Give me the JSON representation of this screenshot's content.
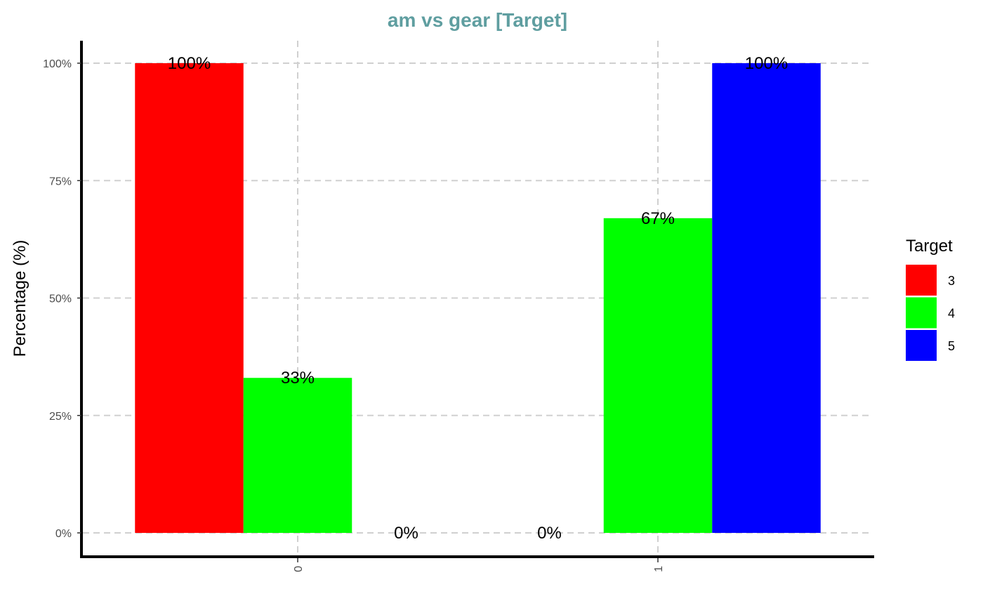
{
  "chart_data": {
    "type": "bar",
    "title": "am vs gear [Target]",
    "title_color": "#5F9EA0",
    "xlabel": "",
    "ylabel": "Percentage (%)",
    "categories": [
      "0",
      "1"
    ],
    "y_ticks": [
      0,
      25,
      50,
      75,
      100
    ],
    "y_tick_labels": [
      "0%",
      "25%",
      "50%",
      "75%",
      "100%"
    ],
    "ylim": [
      0,
      100
    ],
    "legend_title": "Target",
    "legend_position": "right",
    "grid": true,
    "series": [
      {
        "name": "3",
        "color": "#FF0000",
        "values": [
          100,
          0
        ],
        "labels": [
          "100%",
          "0%"
        ]
      },
      {
        "name": "4",
        "color": "#00FF00",
        "values": [
          33,
          67
        ],
        "labels": [
          "33%",
          "67%"
        ]
      },
      {
        "name": "5",
        "color": "#0000FF",
        "values": [
          0,
          100
        ],
        "labels": [
          "0%",
          "100%"
        ]
      }
    ]
  }
}
